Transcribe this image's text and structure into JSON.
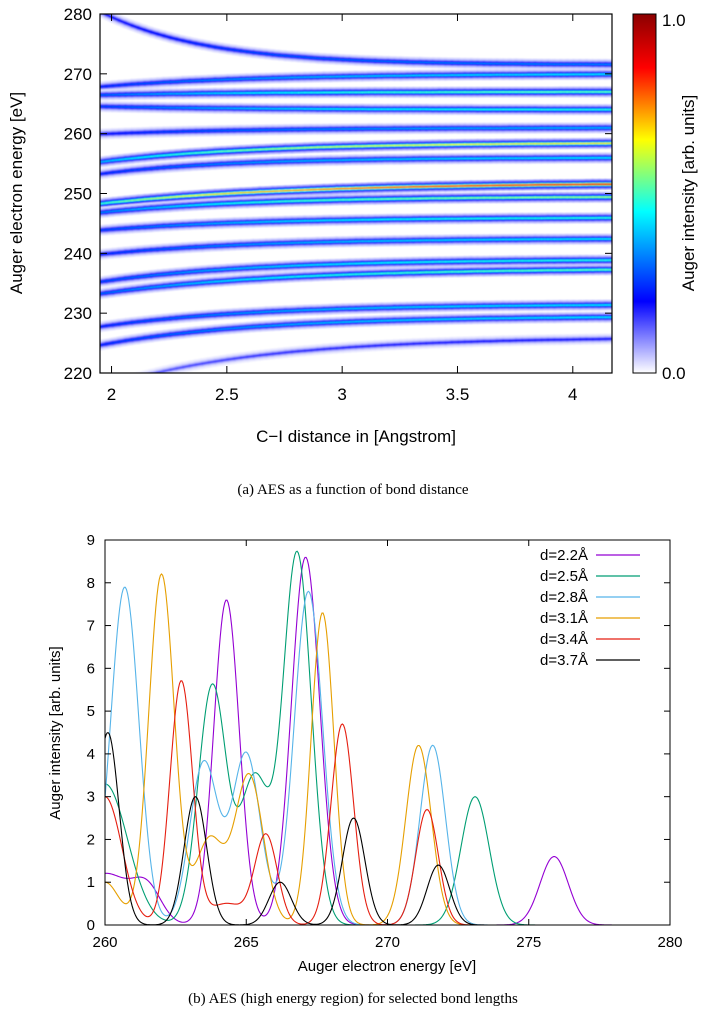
{
  "chart_data": [
    {
      "type": "heatmap",
      "title": "",
      "xlabel": "C−I distance in [Angstrom]",
      "ylabel": "Auger electron energy [eV]",
      "xlim": [
        1.95,
        4.17
      ],
      "ylim": [
        220,
        280
      ],
      "xticks": [
        "2",
        "2.5",
        "3",
        "3.5",
        "4"
      ],
      "yticks": [
        "220",
        "230",
        "240",
        "250",
        "260",
        "270",
        "280"
      ],
      "colorbar": {
        "label": "Auger intensity [arb. units]",
        "min_label": "0.0",
        "max_label": "1.0",
        "colors": [
          "#ffffff",
          "#0000ff",
          "#00ffff",
          "#ffff00",
          "#ff0000",
          "#8b0000"
        ]
      },
      "bands": [
        {
          "e0": 279.5,
          "e_inf": 271.5,
          "k": 2.2,
          "peak": 0.35
        },
        {
          "e0": 268.0,
          "e_inf": 270.0,
          "k": 1.5,
          "peak": 0.45
        },
        {
          "e0": 266.5,
          "e_inf": 267.0,
          "k": 1.5,
          "peak": 0.55
        },
        {
          "e0": 264.5,
          "e_inf": 264.0,
          "k": 1.5,
          "peak": 0.5
        },
        {
          "e0": 260.0,
          "e_inf": 261.0,
          "k": 1.5,
          "peak": 0.4
        },
        {
          "e0": 255.5,
          "e_inf": 258.5,
          "k": 1.5,
          "peak": 0.7
        },
        {
          "e0": 253.5,
          "e_inf": 256.0,
          "k": 1.8,
          "peak": 0.45
        },
        {
          "e0": 248.5,
          "e_inf": 251.8,
          "k": 1.2,
          "peak": 0.9
        },
        {
          "e0": 247.0,
          "e_inf": 249.5,
          "k": 1.5,
          "peak": 0.6
        },
        {
          "e0": 244.0,
          "e_inf": 246.0,
          "k": 1.5,
          "peak": 0.5
        },
        {
          "e0": 240.0,
          "e_inf": 242.5,
          "k": 1.5,
          "peak": 0.45
        },
        {
          "e0": 235.5,
          "e_inf": 239.0,
          "k": 1.5,
          "peak": 0.5
        },
        {
          "e0": 233.5,
          "e_inf": 237.5,
          "k": 1.3,
          "peak": 0.55
        },
        {
          "e0": 228.0,
          "e_inf": 231.5,
          "k": 1.5,
          "peak": 0.45
        },
        {
          "e0": 225.0,
          "e_inf": 229.5,
          "k": 1.5,
          "peak": 0.45
        },
        {
          "e0": 218.0,
          "e_inf": 226.0,
          "k": 1.5,
          "peak": 0.2
        }
      ]
    },
    {
      "type": "line",
      "title": "",
      "xlabel": "Auger electron energy [eV]",
      "ylabel": "Auger intensity [arb. units]",
      "xlim": [
        260,
        280
      ],
      "ylim": [
        0,
        9
      ],
      "xticks": [
        "260",
        "265",
        "270",
        "275",
        "280"
      ],
      "yticks": [
        "0",
        "1",
        "2",
        "3",
        "4",
        "5",
        "6",
        "7",
        "8",
        "9"
      ],
      "legend_position": "top-right",
      "series": [
        {
          "name": "d=2.2Å",
          "color": "#9400d3",
          "peaks": [
            [
              260.0,
              1.2,
              0.9
            ],
            [
              261.5,
              0.75,
              0.5
            ],
            [
              264.3,
              7.6,
              0.45
            ],
            [
              267.1,
              8.6,
              0.5
            ],
            [
              275.9,
              1.6,
              0.5
            ]
          ]
        },
        {
          "name": "d=2.5Å",
          "color": "#009e73",
          "peaks": [
            [
              260.0,
              3.3,
              0.8
            ],
            [
              263.8,
              5.6,
              0.5
            ],
            [
              265.3,
              3.4,
              0.5
            ],
            [
              266.8,
              8.7,
              0.5
            ],
            [
              273.1,
              3.0,
              0.5
            ]
          ]
        },
        {
          "name": "d=2.8Å",
          "color": "#56b4e9",
          "peaks": [
            [
              260.7,
              7.9,
              0.5
            ],
            [
              263.5,
              3.8,
              0.5
            ],
            [
              265.0,
              4.0,
              0.5
            ],
            [
              267.2,
              7.8,
              0.5
            ],
            [
              271.6,
              4.2,
              0.45
            ]
          ]
        },
        {
          "name": "d=3.1Å",
          "color": "#e69f00",
          "peaks": [
            [
              260.0,
              1.0,
              0.5
            ],
            [
              262.0,
              8.2,
              0.45
            ],
            [
              263.7,
              2.0,
              0.5
            ],
            [
              265.1,
              3.5,
              0.5
            ],
            [
              267.7,
              7.3,
              0.4
            ],
            [
              271.1,
              4.2,
              0.45
            ]
          ]
        },
        {
          "name": "d=3.4Å",
          "color": "#e51e10",
          "peaks": [
            [
              260.0,
              3.0,
              0.6
            ],
            [
              262.7,
              5.7,
              0.4
            ],
            [
              264.3,
              0.5,
              0.6
            ],
            [
              265.7,
              2.1,
              0.4
            ],
            [
              268.4,
              4.7,
              0.4
            ],
            [
              271.4,
              2.7,
              0.4
            ]
          ]
        },
        {
          "name": "d=3.7Å",
          "color": "#000000",
          "peaks": [
            [
              260.1,
              4.5,
              0.4
            ],
            [
              263.2,
              3.0,
              0.4
            ],
            [
              266.2,
              1.0,
              0.4
            ],
            [
              268.8,
              2.5,
              0.4
            ],
            [
              271.8,
              1.4,
              0.4
            ]
          ]
        }
      ]
    }
  ],
  "captions": {
    "a": "(a)  AES as a function of bond distance",
    "b": "(b)  AES (high energy region) for selected bond lengths"
  }
}
